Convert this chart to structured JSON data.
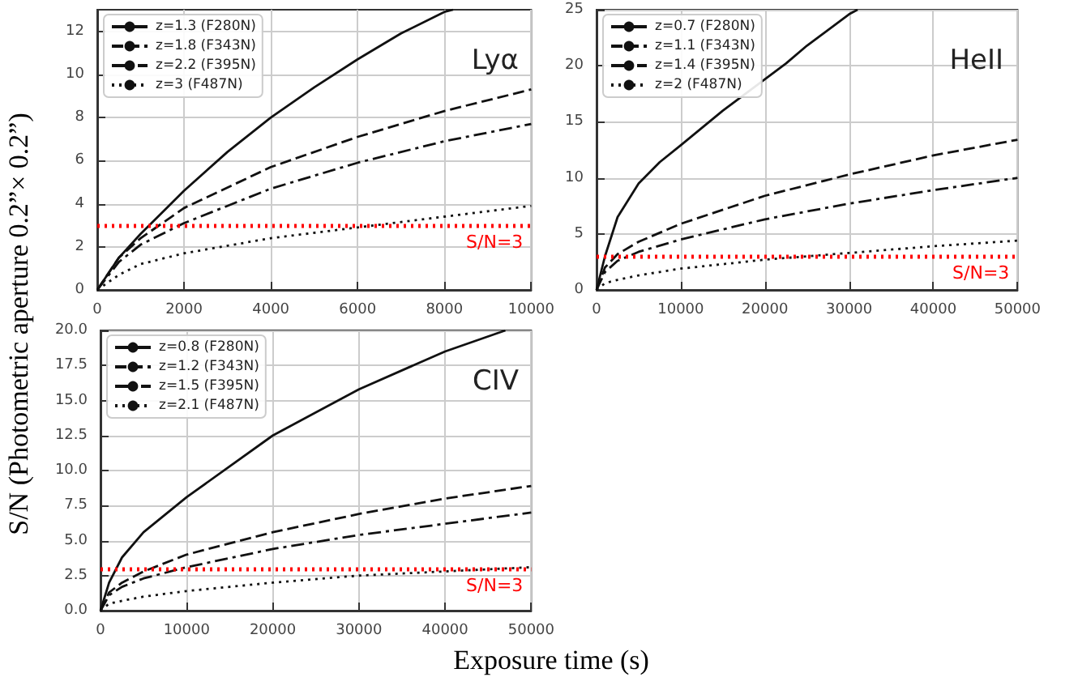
{
  "chart_data": [
    {
      "type": "line",
      "title": "Lyα",
      "ylabel": "S/N (Photometric aperture 0.2”× 0.2”)",
      "xlim": [
        0,
        10000
      ],
      "xticks": [
        0,
        2000,
        4000,
        6000,
        8000,
        10000
      ],
      "ylim": [
        0,
        13
      ],
      "yticks": [
        0,
        2,
        4,
        6,
        8,
        10,
        12
      ],
      "grid": true,
      "legend": "top left",
      "marker": "none",
      "series": [
        {
          "name": "z=1.3 (F280N)",
          "color": "#111111",
          "line_style": "solid",
          "x": [
            0,
            500,
            1000,
            2000,
            3000,
            4000,
            5000,
            6000,
            7000,
            8000,
            8200
          ],
          "values": [
            0,
            1.5,
            2.6,
            4.6,
            6.4,
            8.0,
            9.4,
            10.7,
            11.9,
            12.9,
            13.0
          ]
        },
        {
          "name": "z=1.8 (F343N)",
          "color": "#111111",
          "line_style": "dashed",
          "x": [
            0,
            500,
            1000,
            2000,
            4000,
            6000,
            8000,
            10000
          ],
          "values": [
            0,
            1.5,
            2.4,
            3.8,
            5.7,
            7.1,
            8.3,
            9.3
          ]
        },
        {
          "name": "z=2.2 (F395N)",
          "color": "#111111",
          "line_style": "dashdot",
          "x": [
            0,
            500,
            1000,
            2000,
            4000,
            6000,
            8000,
            10000
          ],
          "values": [
            0,
            1.3,
            2.1,
            3.1,
            4.7,
            5.9,
            6.9,
            7.7
          ]
        },
        {
          "name": "z=3 (F487N)",
          "color": "#111111",
          "line_style": "dotted",
          "x": [
            0,
            500,
            1000,
            2000,
            4000,
            6000,
            8000,
            10000
          ],
          "values": [
            0,
            0.7,
            1.2,
            1.7,
            2.4,
            2.9,
            3.4,
            3.9
          ]
        }
      ],
      "ref_lines": [
        {
          "axis": "y",
          "value": 3,
          "label": "S/N=3",
          "color": "#ff0000",
          "line_style": "dotted"
        }
      ]
    },
    {
      "type": "line",
      "title": "HeII",
      "xlim": [
        0,
        50000
      ],
      "xticks": [
        0,
        10000,
        20000,
        30000,
        40000,
        50000
      ],
      "ylim": [
        0,
        25
      ],
      "yticks": [
        0,
        5,
        10,
        15,
        20,
        25
      ],
      "grid": true,
      "legend": "top left",
      "marker": "none",
      "series": [
        {
          "name": "z=0.7 (F280N)",
          "color": "#111111",
          "line_style": "solid",
          "x": [
            0,
            1000,
            2500,
            5000,
            7500,
            10000,
            15000,
            22500,
            25000,
            30000,
            31000
          ],
          "values": [
            0,
            3.0,
            6.5,
            9.5,
            11.4,
            12.9,
            16.0,
            20.2,
            21.8,
            24.6,
            25
          ]
        },
        {
          "name": "z=1.1 (F343N)",
          "color": "#111111",
          "line_style": "dashed",
          "x": [
            0,
            1000,
            2500,
            5000,
            10000,
            20000,
            30000,
            40000,
            50000
          ],
          "values": [
            0,
            2.0,
            3.2,
            4.3,
            5.9,
            8.4,
            10.3,
            12.0,
            13.4
          ]
        },
        {
          "name": "z=1.4 (F395N)",
          "color": "#111111",
          "line_style": "dashdot",
          "x": [
            0,
            1000,
            2500,
            5000,
            10000,
            20000,
            30000,
            40000,
            50000
          ],
          "values": [
            0,
            1.6,
            2.6,
            3.4,
            4.5,
            6.3,
            7.7,
            8.9,
            10.0
          ]
        },
        {
          "name": "z=2 (F487N)",
          "color": "#111111",
          "line_style": "dotted",
          "x": [
            0,
            1000,
            2500,
            5000,
            10000,
            20000,
            30000,
            40000,
            50000
          ],
          "values": [
            0,
            0.6,
            0.9,
            1.3,
            1.9,
            2.7,
            3.3,
            3.9,
            4.4
          ]
        }
      ],
      "ref_lines": [
        {
          "axis": "y",
          "value": 3,
          "label": "S/N=3",
          "color": "#ff0000",
          "line_style": "dotted"
        }
      ]
    },
    {
      "type": "line",
      "title": "CIV",
      "xlabel": "Exposure time (s)",
      "xlim": [
        0,
        50000
      ],
      "xticks": [
        0,
        10000,
        20000,
        30000,
        40000,
        50000
      ],
      "ylim": [
        0,
        20
      ],
      "yticks": [
        {
          "value": 0,
          "label": "0.0"
        },
        {
          "value": 2.5,
          "label": "2.5"
        },
        {
          "value": 5,
          "label": "5.0"
        },
        {
          "value": 7.5,
          "label": "7.5"
        },
        {
          "value": 10,
          "label": "10.0"
        },
        {
          "value": 12.5,
          "label": "12.5"
        },
        {
          "value": 15,
          "label": "15.0"
        },
        {
          "value": 17.5,
          "label": "17.5"
        },
        {
          "value": 20,
          "label": "20.0"
        }
      ],
      "grid": true,
      "legend": "top left",
      "marker": "none",
      "series": [
        {
          "name": "z=0.8 (F280N)",
          "color": "#111111",
          "line_style": "solid",
          "x": [
            0,
            1000,
            2500,
            5000,
            10000,
            20000,
            30000,
            40000,
            47000
          ],
          "values": [
            0,
            2.0,
            3.8,
            5.6,
            8.1,
            12.5,
            15.8,
            18.5,
            20
          ]
        },
        {
          "name": "z=1.2 (F343N)",
          "color": "#111111",
          "line_style": "dashed",
          "x": [
            0,
            1000,
            2500,
            5000,
            10000,
            20000,
            30000,
            40000,
            50000
          ],
          "values": [
            0,
            1.3,
            2.0,
            2.8,
            4.0,
            5.6,
            6.9,
            8.0,
            8.9
          ]
        },
        {
          "name": "z=1.5 (F395N)",
          "color": "#111111",
          "line_style": "dashdot",
          "x": [
            0,
            1000,
            2500,
            5000,
            10000,
            20000,
            30000,
            40000,
            50000
          ],
          "values": [
            0,
            1.1,
            1.7,
            2.3,
            3.1,
            4.4,
            5.4,
            6.2,
            7.0
          ]
        },
        {
          "name": "z=2.1 (F487N)",
          "color": "#111111",
          "line_style": "dotted",
          "x": [
            0,
            1000,
            2500,
            5000,
            10000,
            20000,
            30000,
            40000,
            50000
          ],
          "values": [
            0,
            0.5,
            0.7,
            1.0,
            1.4,
            2.0,
            2.5,
            2.8,
            3.1
          ]
        }
      ],
      "ref_lines": [
        {
          "axis": "y",
          "value": 3,
          "label": "S/N=3",
          "color": "#ff0000",
          "line_style": "dotted"
        }
      ]
    }
  ]
}
